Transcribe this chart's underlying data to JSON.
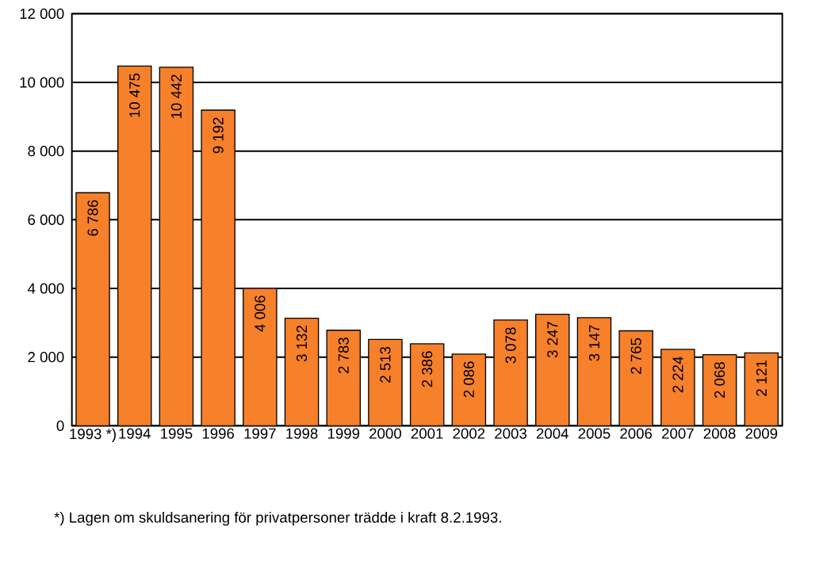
{
  "chart_data": {
    "type": "bar",
    "categories": [
      "1993 *)",
      "1994",
      "1995",
      "1996",
      "1997",
      "1998",
      "1999",
      "2000",
      "2001",
      "2002",
      "2003",
      "2004",
      "2005",
      "2006",
      "2007",
      "2008",
      "2009"
    ],
    "values": [
      6786,
      10475,
      10442,
      9192,
      4006,
      3132,
      2783,
      2513,
      2386,
      2086,
      3078,
      3247,
      3147,
      2765,
      2224,
      2068,
      2121
    ],
    "value_labels": [
      "6 786",
      "10 475",
      "10 442",
      "9 192",
      "4 006",
      "3 132",
      "2 783",
      "2 513",
      "2 386",
      "2 086",
      "3 078",
      "3 247",
      "3 147",
      "2 765",
      "2 224",
      "2 068",
      "2 121"
    ],
    "color": "#f7802a",
    "ylim": [
      0,
      12000
    ],
    "yticks": [
      0,
      {
        "value": 2000,
        "label": "2 000"
      },
      {
        "value": 4000,
        "label": "4 000"
      },
      {
        "value": 6000,
        "label": "6 000"
      },
      {
        "value": 8000,
        "label": "8 000"
      },
      {
        "value": 10000,
        "label": "10 000"
      },
      {
        "value": 12000,
        "label": "12 000"
      }
    ],
    "grid": "y",
    "annotations": [
      "*) Lagen om skuldsanering för privatpersoner trädde i kraft 8.2.1993."
    ]
  }
}
